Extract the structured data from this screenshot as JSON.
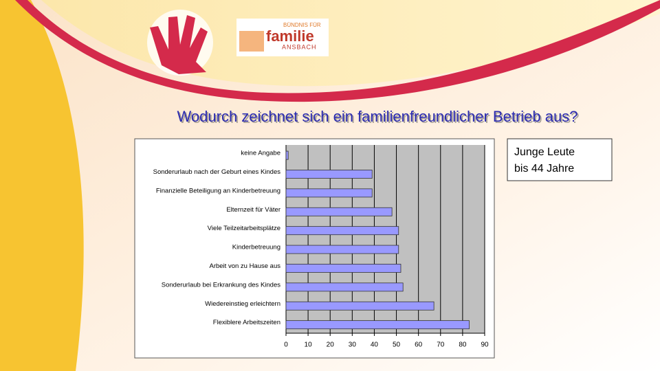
{
  "logo": {
    "top": "BÜNDNIS FÜR",
    "main": "familie",
    "bottom": "ANSBACH"
  },
  "chart_data": {
    "type": "barh",
    "title": "Wodurch zeichnet sich ein familienfreundlicher Betrieb aus?",
    "categories": [
      "keine Angabe",
      "Sonderurlaub nach der Geburt eines Kindes",
      "Finanzielle Beteiligung an Kinderbetreuung",
      "Elternzeit für Väter",
      "Viele Teilzeitarbeitsplätze",
      "Kinderbetreuung",
      "Arbeit von zu Hause aus",
      "Sonderurlaub bei Erkrankung des Kindes",
      "Wiedereinstieg erleichtern",
      "Flexiblere Arbeitszeiten"
    ],
    "values": [
      1,
      39,
      39,
      48,
      51,
      51,
      52,
      53,
      67,
      83
    ],
    "color": "#9999ff",
    "xlim": [
      0,
      90
    ],
    "xticks": [
      0,
      10,
      20,
      30,
      40,
      50,
      60,
      70,
      80,
      90
    ],
    "grid": true,
    "annotation": [
      "Junge Leute",
      "bis 44 Jahre"
    ]
  }
}
